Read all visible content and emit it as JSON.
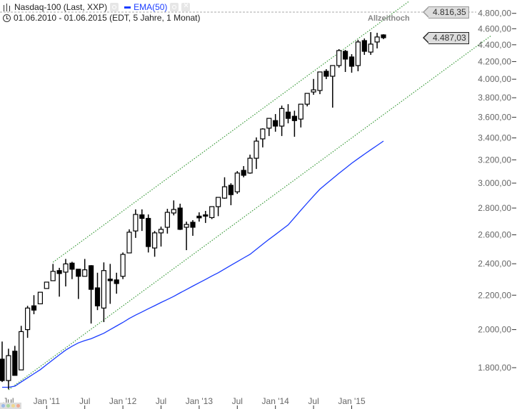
{
  "header": {
    "instrument": "Nasdaq-100 (Last, XXP)",
    "indicator": "EMA(50)",
    "range": "01.06.2010 - 01.06.2015 (EDT, 5 Jahre, 1 Monat)",
    "icons": [
      "bar-chart-icon",
      "settings-icon",
      "settings-icon",
      "close-icon",
      "clock-icon"
    ]
  },
  "annotations": {
    "all_time_high_label": "Allzeithoch",
    "all_time_high_value": "4.816,35",
    "last_price": "4.487,03"
  },
  "colors": {
    "ema": "#1a3cff",
    "channel": "#3a9a3a",
    "up_candle": "#ffffff",
    "down_candle": "#000000",
    "ath_line": "#aaaaaa"
  },
  "chart_data": {
    "type": "candlestick",
    "interval": "1 Monat",
    "y_scale": "log",
    "ylim": [
      1700,
      4900
    ],
    "grid": false,
    "y_ticks": [
      "1.800,00",
      "2.000,00",
      "2.200,00",
      "2.400,00",
      "2.600,00",
      "2.800,00",
      "3.000,00",
      "3.200,00",
      "3.400,00",
      "3.600,00",
      "3.800,00",
      "4.000,00",
      "4.200,00",
      "4.400,00",
      "4.600,00",
      "4.800,00"
    ],
    "y_tick_values": [
      1800,
      2000,
      2200,
      2400,
      2600,
      2800,
      3000,
      3200,
      3400,
      3600,
      3800,
      4000,
      4200,
      4400,
      4600,
      4800
    ],
    "x_ticks": [
      {
        "label": "Jul",
        "date": "2010-07"
      },
      {
        "label": "Jan '11",
        "date": "2011-01"
      },
      {
        "label": "Jul",
        "date": "2011-07"
      },
      {
        "label": "Jan '12",
        "date": "2012-01"
      },
      {
        "label": "Jul",
        "date": "2012-07"
      },
      {
        "label": "Jan '13",
        "date": "2013-01"
      },
      {
        "label": "Jul",
        "date": "2013-07"
      },
      {
        "label": "Jan '14",
        "date": "2014-01"
      },
      {
        "label": "Jul",
        "date": "2014-07"
      },
      {
        "label": "Jan '15",
        "date": "2015-01"
      }
    ],
    "columns": [
      "date",
      "open",
      "high",
      "low",
      "close"
    ],
    "candles": [
      [
        "2010-06",
        1843,
        1935,
        1730,
        1737
      ],
      [
        "2010-07",
        1737,
        1897,
        1696,
        1861
      ],
      [
        "2010-08",
        1884,
        1912,
        1762,
        1762
      ],
      [
        "2010-09",
        1789,
        2021,
        1789,
        1989
      ],
      [
        "2010-10",
        2000,
        2136,
        1955,
        2123
      ],
      [
        "2010-11",
        2136,
        2200,
        2087,
        2111
      ],
      [
        "2010-12",
        2148,
        2218,
        2148,
        2218
      ],
      [
        "2011-01",
        2241,
        2281,
        2241,
        2281
      ],
      [
        "2011-02",
        2290,
        2399,
        2290,
        2350
      ],
      [
        "2011-03",
        2355,
        2373,
        2191,
        2336
      ],
      [
        "2011-04",
        2345,
        2432,
        2254,
        2399
      ],
      [
        "2011-05",
        2404,
        2413,
        2300,
        2364
      ],
      [
        "2011-06",
        2364,
        2364,
        2177,
        2318
      ],
      [
        "2011-07",
        2318,
        2432,
        2318,
        2360
      ],
      [
        "2011-08",
        2387,
        2391,
        2034,
        2236
      ],
      [
        "2011-09",
        2245,
        2341,
        2111,
        2136
      ],
      [
        "2011-10",
        2123,
        2409,
        2042,
        2355
      ],
      [
        "2011-11",
        2300,
        2399,
        2148,
        2290
      ],
      [
        "2011-12",
        2295,
        2341,
        2209,
        2272
      ],
      [
        "2012-01",
        2318,
        2476,
        2300,
        2463
      ],
      [
        "2012-02",
        2473,
        2640,
        2473,
        2619
      ],
      [
        "2012-03",
        2628,
        2790,
        2578,
        2751
      ],
      [
        "2012-04",
        2748,
        2790,
        2628,
        2721
      ],
      [
        "2012-05",
        2721,
        2751,
        2476,
        2517
      ],
      [
        "2012-06",
        2507,
        2628,
        2447,
        2614
      ],
      [
        "2012-07",
        2614,
        2660,
        2517,
        2640
      ],
      [
        "2012-08",
        2655,
        2794,
        2609,
        2767
      ],
      [
        "2012-09",
        2762,
        2860,
        2744,
        2789
      ],
      [
        "2012-10",
        2800,
        2834,
        2635,
        2640
      ],
      [
        "2012-11",
        2655,
        2697,
        2492,
        2676
      ],
      [
        "2012-12",
        2692,
        2708,
        2593,
        2655
      ],
      [
        "2013-01",
        2738,
        2767,
        2697,
        2725
      ],
      [
        "2013-02",
        2748,
        2778,
        2687,
        2738
      ],
      [
        "2013-03",
        2727,
        2811,
        2716,
        2811
      ],
      [
        "2013-04",
        2811,
        2884,
        2738,
        2884
      ],
      [
        "2013-05",
        2878,
        3049,
        2873,
        2970
      ],
      [
        "2013-06",
        2982,
        2999,
        2822,
        2906
      ],
      [
        "2013-07",
        2929,
        3102,
        2912,
        3085
      ],
      [
        "2013-08",
        3108,
        3145,
        3049,
        3066
      ],
      [
        "2013-09",
        3085,
        3246,
        3079,
        3214
      ],
      [
        "2013-10",
        3214,
        3405,
        3120,
        3370
      ],
      [
        "2013-11",
        3391,
        3492,
        3312,
        3485
      ],
      [
        "2013-12",
        3493,
        3589,
        3418,
        3589
      ],
      [
        "2014-01",
        3567,
        3632,
        3459,
        3513
      ],
      [
        "2014-02",
        3513,
        3718,
        3418,
        3688
      ],
      [
        "2014-03",
        3652,
        3733,
        3540,
        3589
      ],
      [
        "2014-04",
        3610,
        3666,
        3411,
        3567
      ],
      [
        "2014-05",
        3582,
        3733,
        3500,
        3733
      ],
      [
        "2014-06",
        3733,
        3846,
        3710,
        3846
      ],
      [
        "2014-07",
        3861,
        4003,
        3831,
        3884
      ],
      [
        "2014-08",
        3877,
        4081,
        3838,
        4081
      ],
      [
        "2014-09",
        4089,
        4113,
        4001,
        4033
      ],
      [
        "2014-10",
        4033,
        4154,
        3697,
        4154
      ],
      [
        "2014-11",
        4154,
        4347,
        4130,
        4330
      ],
      [
        "2014-12",
        4321,
        4338,
        4081,
        4229
      ],
      [
        "2015-01",
        4254,
        4287,
        4073,
        4146
      ],
      [
        "2015-02",
        4154,
        4460,
        4089,
        4434
      ],
      [
        "2015-03",
        4451,
        4478,
        4279,
        4321
      ],
      [
        "2015-04",
        4312,
        4557,
        4279,
        4408
      ],
      [
        "2015-05",
        4434,
        4548,
        4356,
        4496
      ],
      [
        "2015-06",
        4522,
        4530,
        4469,
        4487
      ]
    ],
    "series": [
      {
        "name": "EMA(50)",
        "values": [
          1705,
          1705,
          1710,
          1730,
          1750,
          1770,
          1790,
          1815,
          1840,
          1865,
          1890,
          1910,
          1928,
          1940,
          1950,
          1965,
          1980,
          2000,
          2020,
          2040,
          2063,
          2082,
          2100,
          2119,
          2137,
          2156,
          2174,
          2193,
          2214,
          2235,
          2256,
          2277,
          2298,
          2320,
          2341,
          2365,
          2390,
          2414,
          2439,
          2463,
          2498,
          2533,
          2568,
          2602,
          2637,
          2672,
          2727,
          2783,
          2839,
          2895,
          2950,
          2994,
          3038,
          3082,
          3126,
          3170,
          3210,
          3250,
          3290,
          3330,
          3370
        ]
      }
    ],
    "trendlines": [
      {
        "from": {
          "date": "2011-02",
          "value": 2410
        },
        "to": {
          "date": "2015-10",
          "value": 4961
        }
      },
      {
        "from": {
          "date": "2010-07",
          "value": 1693
        },
        "to": {
          "date": "2016-11",
          "value": 4516
        }
      }
    ],
    "horizontal_lines": [
      {
        "value": 4816.35,
        "label": "Allzeithoch"
      }
    ]
  }
}
